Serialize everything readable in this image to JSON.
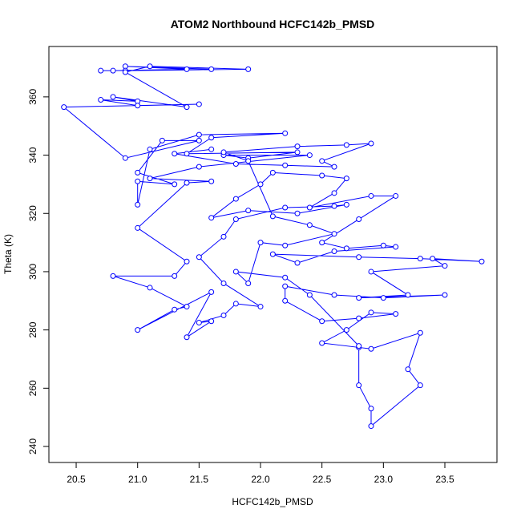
{
  "chart_data": {
    "type": "line",
    "title": "ATOM2 Northbound HCFC142b_PMSD",
    "x_label": "HCFC142b_PMSD",
    "y_label": "Theta (K)",
    "color": "#0000ff",
    "markers": true,
    "x": [
      20.7,
      20.8,
      21.4,
      20.9,
      21.6,
      20.9,
      21.9,
      21.1,
      20.9,
      21.4,
      20.8,
      21.0,
      20.7,
      21.0,
      21.5,
      20.4,
      20.9,
      21.5,
      21.2,
      21.0,
      21.3,
      21.0,
      21.0,
      21.1,
      21.5,
      22.2,
      21.6,
      21.4,
      22.3,
      21.9,
      21.7,
      22.4,
      21.5,
      21.1,
      21.6,
      21.4,
      21.0,
      21.4,
      21.3,
      20.8,
      21.1,
      21.4,
      21.3,
      21.0,
      21.6,
      21.4,
      21.6,
      21.5,
      21.7,
      21.8,
      22.0,
      21.7,
      21.5,
      21.7,
      21.8,
      22.2,
      22.6,
      22.7,
      22.3,
      21.9,
      21.6,
      21.8,
      22.0,
      22.1,
      22.5,
      22.7,
      22.6,
      22.4,
      22.9,
      23.1,
      22.8,
      22.5,
      22.7,
      23.0,
      23.1,
      22.6,
      22.3,
      22.1,
      22.8,
      23.3,
      23.8,
      23.4,
      23.5,
      22.9,
      23.2,
      22.8,
      23.5,
      23.0,
      22.6,
      22.2,
      22.2,
      22.5,
      22.8,
      23.1,
      22.9,
      22.7,
      22.5,
      22.8,
      22.9,
      23.3,
      23.2,
      23.3,
      22.9,
      22.9,
      22.8,
      22.8,
      22.4,
      22.2,
      21.8,
      21.9,
      22.0,
      22.2,
      22.6,
      22.4,
      22.1,
      21.9,
      21.7,
      22.3,
      22.7,
      22.9,
      22.5,
      22.6,
      22.2,
      21.8,
      21.3,
      21.6
    ],
    "values": [
      369,
      369,
      369.5,
      370.5,
      369.5,
      369,
      369.5,
      370.5,
      368.5,
      356.5,
      360,
      358.5,
      359,
      357,
      357.5,
      356.5,
      339,
      345,
      345,
      334,
      330,
      331,
      323,
      342,
      347,
      347.5,
      346,
      340.5,
      341,
      339,
      340,
      340,
      336,
      332,
      331,
      330.5,
      315,
      303.5,
      298.5,
      298.5,
      294.5,
      288,
      287,
      280,
      293,
      277.5,
      283,
      282.5,
      285,
      289,
      288,
      296,
      305,
      312,
      318,
      322,
      322.5,
      323,
      320,
      321,
      318.5,
      325,
      330,
      334,
      333,
      332,
      327,
      322,
      326,
      326,
      318,
      310,
      308,
      309,
      308.5,
      307,
      303,
      306,
      305,
      304.5,
      303.5,
      304.5,
      302,
      300,
      292,
      291,
      292,
      291,
      292,
      295,
      290,
      283,
      284,
      285.5,
      286,
      280,
      275.5,
      274,
      273.5,
      279,
      266.5,
      261,
      247,
      253,
      261,
      274.5,
      292,
      298,
      300,
      296,
      310,
      309,
      313,
      316,
      319,
      338,
      341,
      343,
      343.5,
      344,
      338,
      336,
      336.5,
      337,
      340.5,
      342
    ],
    "xlim": [
      20.278,
      23.924
    ],
    "ylim": [
      234.5,
      377.3
    ],
    "xticks": [
      20.5,
      {
        "value": 21,
        "label": "21.0"
      },
      21.5,
      {
        "value": 22,
        "label": "22.0"
      },
      22.5,
      {
        "value": 23,
        "label": "23.0"
      },
      23.5
    ],
    "yticks": [
      240,
      260,
      280,
      300,
      320,
      340,
      360
    ]
  }
}
